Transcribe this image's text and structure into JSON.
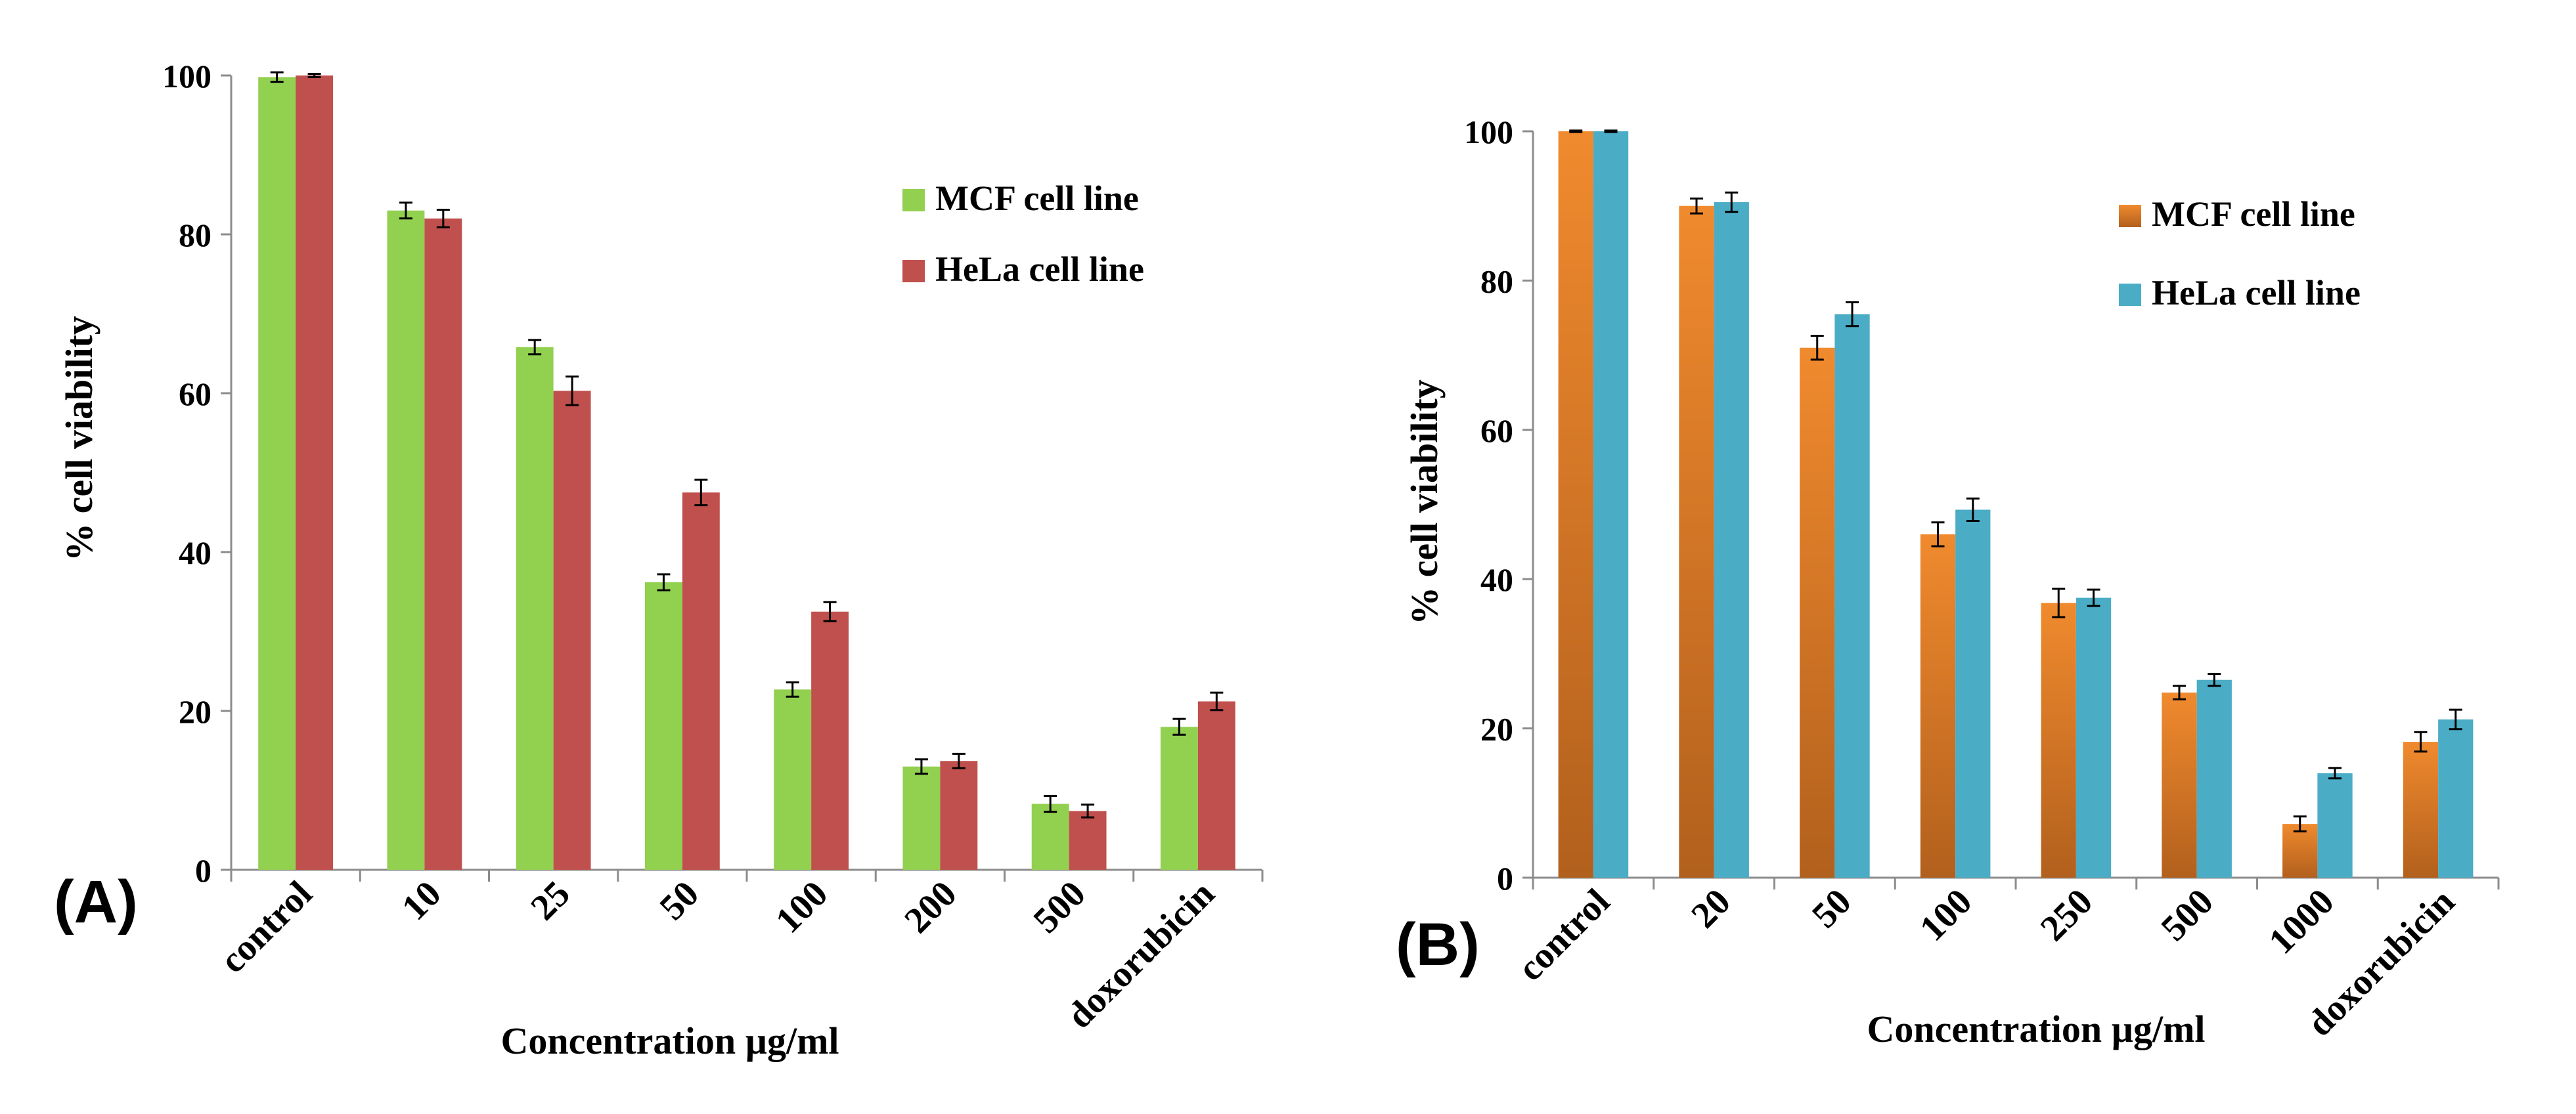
{
  "chart_data": [
    {
      "panel_label": "(A)",
      "type": "bar",
      "title": "",
      "xlabel": "Concentration µg/ml",
      "ylabel": "% cell viability",
      "ylim": [
        0,
        100
      ],
      "yticks": [
        "0",
        "20",
        "40",
        "60",
        "80",
        "100"
      ],
      "grid": false,
      "legend_position": "top-right",
      "categories": [
        "control",
        "10",
        "25",
        "50",
        "100",
        "200",
        "500",
        "doxorubicin"
      ],
      "series": [
        {
          "name": "MCF cell line",
          "color": "#92D050",
          "values": [
            99.8,
            83.0,
            65.8,
            36.2,
            22.7,
            13.0,
            8.3,
            18.0
          ],
          "errors": [
            0.6,
            1.0,
            0.9,
            1.0,
            0.9,
            0.9,
            1.0,
            1.0
          ]
        },
        {
          "name": "HeLa cell line",
          "color": "#C0504D",
          "values": [
            100.0,
            82.0,
            60.3,
            47.5,
            32.5,
            13.7,
            7.4,
            21.2
          ],
          "errors": [
            0.2,
            1.1,
            1.8,
            1.6,
            1.2,
            0.9,
            0.8,
            1.1
          ]
        }
      ]
    },
    {
      "panel_label": "(B)",
      "type": "bar",
      "title": "",
      "xlabel": "Concentration µg/ml",
      "ylabel": "% cell viability",
      "ylim": [
        0,
        100
      ],
      "yticks": [
        "0",
        "20",
        "40",
        "60",
        "80",
        "100"
      ],
      "grid": false,
      "legend_position": "top-right",
      "categories": [
        "control",
        "20",
        "50",
        "100",
        "250",
        "500",
        "1000",
        "doxorubicin"
      ],
      "series": [
        {
          "name": "MCF cell line",
          "color": "#E8812B",
          "values": [
            100.0,
            90.0,
            71.0,
            46.0,
            36.8,
            24.8,
            7.2,
            18.2
          ],
          "errors": [
            0.1,
            1.0,
            1.6,
            1.6,
            1.9,
            0.9,
            1.0,
            1.3
          ]
        },
        {
          "name": "HeLa cell line",
          "color": "#4BACC6",
          "values": [
            100.0,
            90.5,
            75.5,
            49.3,
            37.5,
            26.5,
            14.0,
            21.2
          ],
          "errors": [
            0.1,
            1.3,
            1.6,
            1.5,
            1.1,
            0.8,
            0.7,
            1.3
          ]
        }
      ]
    }
  ]
}
